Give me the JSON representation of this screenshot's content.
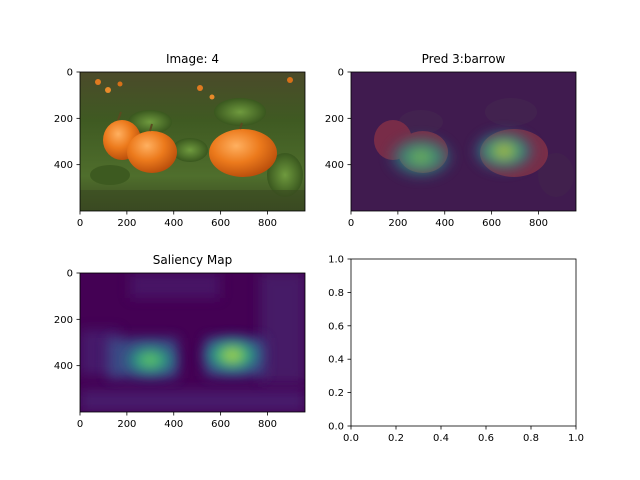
{
  "figure": {
    "panels": [
      {
        "id": "image",
        "title": "Image: 4",
        "kind": "photo"
      },
      {
        "id": "pred",
        "title": "Pred 3:barrow",
        "kind": "overlay"
      },
      {
        "id": "saliency",
        "title": "Saliency Map",
        "kind": "heatmap"
      },
      {
        "id": "empty",
        "title": "",
        "kind": "empty"
      }
    ]
  },
  "chart_data": [
    {
      "type": "image",
      "title": "Image: 4",
      "xlim": [
        0,
        960
      ],
      "ylim": [
        600,
        0
      ],
      "xticks": [
        0,
        200,
        400,
        600,
        800
      ],
      "yticks": [
        0,
        200,
        400
      ],
      "content": "photo"
    },
    {
      "type": "heatmap",
      "title": "Pred 3:barrow",
      "xlim": [
        0,
        960
      ],
      "ylim": [
        600,
        0
      ],
      "xticks": [
        0,
        200,
        400,
        600,
        800
      ],
      "yticks": [
        0,
        200,
        400
      ],
      "content": "photo-with-saliency-overlay"
    },
    {
      "type": "heatmap",
      "title": "Saliency Map",
      "xlim": [
        0,
        960
      ],
      "ylim": [
        600,
        0
      ],
      "xticks": [
        0,
        200,
        400,
        600,
        800
      ],
      "yticks": [
        0,
        200,
        400
      ],
      "colormap": "viridis",
      "hotspots": [
        {
          "x": 300,
          "y": 375,
          "intensity": 0.75
        },
        {
          "x": 650,
          "y": 355,
          "intensity": 1.0
        }
      ]
    },
    {
      "type": "scatter",
      "title": "",
      "xlim": [
        0.0,
        1.0
      ],
      "ylim": [
        0.0,
        1.0
      ],
      "xticks": [
        "0.0",
        "0.2",
        "0.4",
        "0.6",
        "0.8",
        "1.0"
      ],
      "yticks": [
        "0.0",
        "0.2",
        "0.4",
        "0.6",
        "0.8",
        "1.0"
      ],
      "series": []
    }
  ],
  "colors": {
    "viridis_low": "#440154",
    "viridis_mid": "#21918c",
    "viridis_high": "#fde725",
    "pumpkin": "#e56a12",
    "grass": "#4a6b2a"
  }
}
